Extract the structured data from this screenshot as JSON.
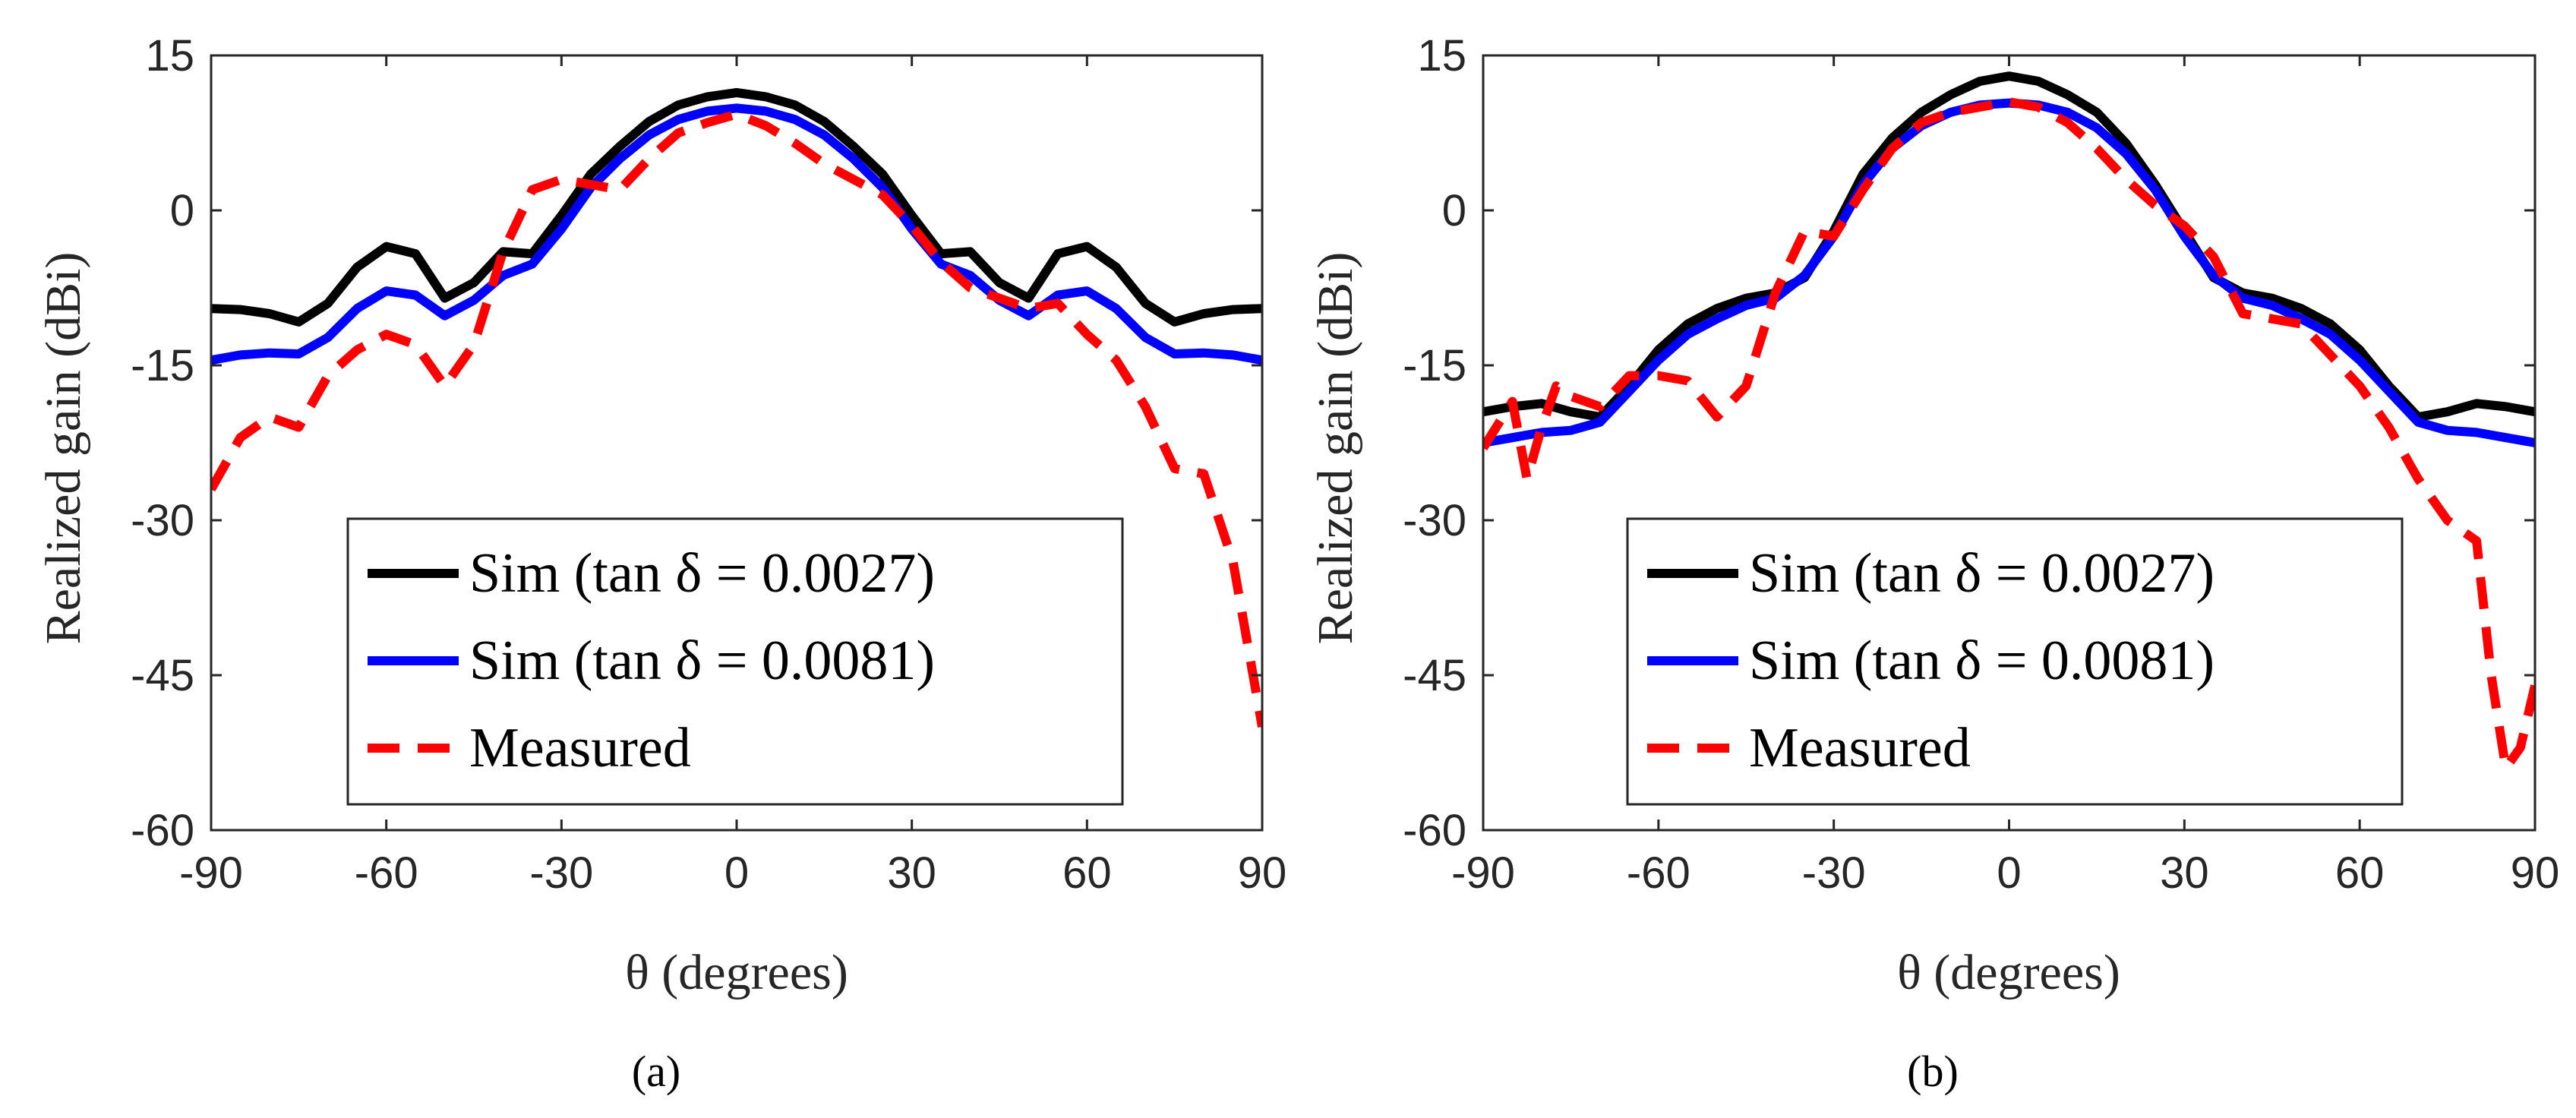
{
  "figure": {
    "panel_labels": [
      "(a)",
      "(b)"
    ]
  },
  "chart_data": [
    {
      "type": "line",
      "panel_label": "(a)",
      "title": "",
      "xlabel": "θ (degrees)",
      "ylabel": "Realized gain (dBi)",
      "xlim": [
        -90,
        90
      ],
      "ylim": [
        -60,
        15
      ],
      "xticks": [
        -90,
        -60,
        -30,
        0,
        30,
        60,
        90
      ],
      "yticks": [
        15,
        0,
        -15,
        -30,
        -45,
        -60
      ],
      "legend_position": "bottom-center",
      "series": [
        {
          "name": "Sim (tan δ = 0.0027)",
          "color": "#000000",
          "dash": "solid",
          "x": [
            -90,
            -85,
            -80,
            -75,
            -70,
            -65,
            -60,
            -55,
            -50,
            -45,
            -40,
            -35,
            -30,
            -25,
            -20,
            -15,
            -10,
            -5,
            0,
            5,
            10,
            15,
            20,
            25,
            30,
            35,
            40,
            45,
            50,
            55,
            60,
            65,
            70,
            75,
            80,
            85,
            90
          ],
          "y": [
            -9.5,
            -9.6,
            -10.0,
            -10.8,
            -9.0,
            -5.5,
            -3.5,
            -4.2,
            -8.5,
            -7.0,
            -4.0,
            -4.2,
            -0.5,
            3.5,
            6.2,
            8.6,
            10.2,
            11.0,
            11.4,
            11.0,
            10.2,
            8.6,
            6.2,
            3.5,
            -0.5,
            -4.2,
            -4.0,
            -7.0,
            -8.5,
            -4.2,
            -3.5,
            -5.5,
            -9.0,
            -10.8,
            -10.0,
            -9.6,
            -9.5
          ]
        },
        {
          "name": "Sim (tan δ = 0.0081)",
          "color": "#0000ff",
          "dash": "solid",
          "x": [
            -90,
            -85,
            -80,
            -75,
            -70,
            -65,
            -60,
            -55,
            -50,
            -45,
            -40,
            -35,
            -30,
            -25,
            -20,
            -15,
            -10,
            -5,
            0,
            5,
            10,
            15,
            20,
            25,
            30,
            35,
            40,
            45,
            50,
            55,
            60,
            65,
            70,
            75,
            80,
            85,
            90
          ],
          "y": [
            -14.5,
            -14.0,
            -13.8,
            -13.9,
            -12.3,
            -9.5,
            -7.8,
            -8.2,
            -10.2,
            -8.7,
            -6.3,
            -5.2,
            -1.8,
            2.2,
            5.0,
            7.3,
            8.8,
            9.6,
            9.9,
            9.6,
            8.8,
            7.3,
            5.0,
            2.2,
            -1.8,
            -5.2,
            -6.3,
            -8.7,
            -10.2,
            -8.2,
            -7.8,
            -9.5,
            -12.3,
            -13.9,
            -13.8,
            -14.0,
            -14.5
          ]
        },
        {
          "name": "Measured",
          "color": "#ff0000",
          "dash": "dashed",
          "x": [
            -90,
            -85,
            -80,
            -75,
            -70,
            -65,
            -60,
            -55,
            -50,
            -45,
            -40,
            -35,
            -30,
            -25,
            -20,
            -15,
            -10,
            -5,
            0,
            5,
            10,
            15,
            20,
            25,
            30,
            35,
            40,
            45,
            50,
            55,
            60,
            65,
            70,
            75,
            80,
            85,
            90
          ],
          "y": [
            -27,
            -22,
            -20,
            -21,
            -16,
            -13.5,
            -12,
            -13,
            -17,
            -13,
            -4,
            2,
            3,
            2.5,
            2,
            5,
            7.5,
            8.5,
            9.3,
            8.2,
            6.5,
            4.5,
            3,
            1.5,
            -1.5,
            -5,
            -7.5,
            -8.5,
            -9.5,
            -9,
            -12,
            -14.5,
            -19,
            -25,
            -25.5,
            -34,
            -50
          ]
        }
      ]
    },
    {
      "type": "line",
      "panel_label": "(b)",
      "title": "",
      "xlabel": "θ (degrees)",
      "ylabel": "Realized gain (dBi)",
      "xlim": [
        -90,
        90
      ],
      "ylim": [
        -60,
        15
      ],
      "xticks": [
        -90,
        -60,
        -30,
        0,
        30,
        60,
        90
      ],
      "yticks": [
        15,
        0,
        -15,
        -30,
        -45,
        -60
      ],
      "legend_position": "bottom-center",
      "series": [
        {
          "name": "Sim (tan δ = 0.0027)",
          "color": "#000000",
          "dash": "solid",
          "x": [
            -90,
            -85,
            -80,
            -75,
            -70,
            -65,
            -60,
            -55,
            -50,
            -45,
            -40,
            -35,
            -30,
            -25,
            -20,
            -15,
            -10,
            -5,
            0,
            5,
            10,
            15,
            20,
            25,
            30,
            35,
            40,
            45,
            50,
            55,
            60,
            65,
            70,
            75,
            80,
            85,
            90
          ],
          "y": [
            -19.5,
            -19.0,
            -18.7,
            -19.5,
            -20.0,
            -17.0,
            -13.5,
            -11.0,
            -9.5,
            -8.5,
            -8.0,
            -6.5,
            -2.0,
            3.5,
            7.0,
            9.5,
            11.2,
            12.5,
            13.0,
            12.5,
            11.2,
            9.5,
            6.5,
            2.5,
            -2.0,
            -6.5,
            -8.0,
            -8.5,
            -9.5,
            -11.0,
            -13.5,
            -17.0,
            -20.0,
            -19.5,
            -18.7,
            -19.0,
            -19.5
          ]
        },
        {
          "name": "Sim (tan δ = 0.0081)",
          "color": "#0000ff",
          "dash": "solid",
          "x": [
            -90,
            -85,
            -80,
            -75,
            -70,
            -65,
            -60,
            -55,
            -50,
            -45,
            -40,
            -35,
            -30,
            -25,
            -20,
            -15,
            -10,
            -5,
            0,
            5,
            10,
            15,
            20,
            25,
            30,
            35,
            40,
            45,
            50,
            55,
            60,
            65,
            70,
            75,
            80,
            85,
            90
          ],
          "y": [
            -22.5,
            -22.0,
            -21.5,
            -21.3,
            -20.5,
            -17.5,
            -14.5,
            -12.0,
            -10.5,
            -9.2,
            -8.5,
            -6.3,
            -2.5,
            2.5,
            6.0,
            8.2,
            9.5,
            10.2,
            10.4,
            10.2,
            9.5,
            8.0,
            5.5,
            2.0,
            -2.5,
            -6.3,
            -8.5,
            -9.2,
            -10.5,
            -12.0,
            -14.5,
            -17.5,
            -20.5,
            -21.3,
            -21.5,
            -22.0,
            -22.5
          ]
        },
        {
          "name": "Measured",
          "color": "#ff0000",
          "dash": "dashed",
          "x": [
            -90,
            -85,
            -82.5,
            -80,
            -77.5,
            -75,
            -70,
            -65,
            -60,
            -55,
            -50,
            -45,
            -40,
            -35,
            -30,
            -25,
            -20,
            -15,
            -10,
            -5,
            0,
            5,
            10,
            15,
            20,
            25,
            30,
            35,
            40,
            45,
            50,
            55,
            60,
            65,
            70,
            75,
            80,
            82.5,
            85,
            87.5,
            90
          ],
          "y": [
            -23,
            -18.5,
            -26,
            -21,
            -17,
            -18,
            -19,
            -16,
            -16,
            -16.5,
            -20,
            -17,
            -8,
            -2,
            -2.5,
            2,
            6,
            8.5,
            9.5,
            10,
            10.5,
            10,
            8.5,
            6,
            3,
            0.5,
            -1.5,
            -4.5,
            -10,
            -10.5,
            -11,
            -14,
            -17,
            -21,
            -26,
            -30,
            -32,
            -45,
            -54,
            -52,
            -46
          ]
        }
      ]
    }
  ]
}
